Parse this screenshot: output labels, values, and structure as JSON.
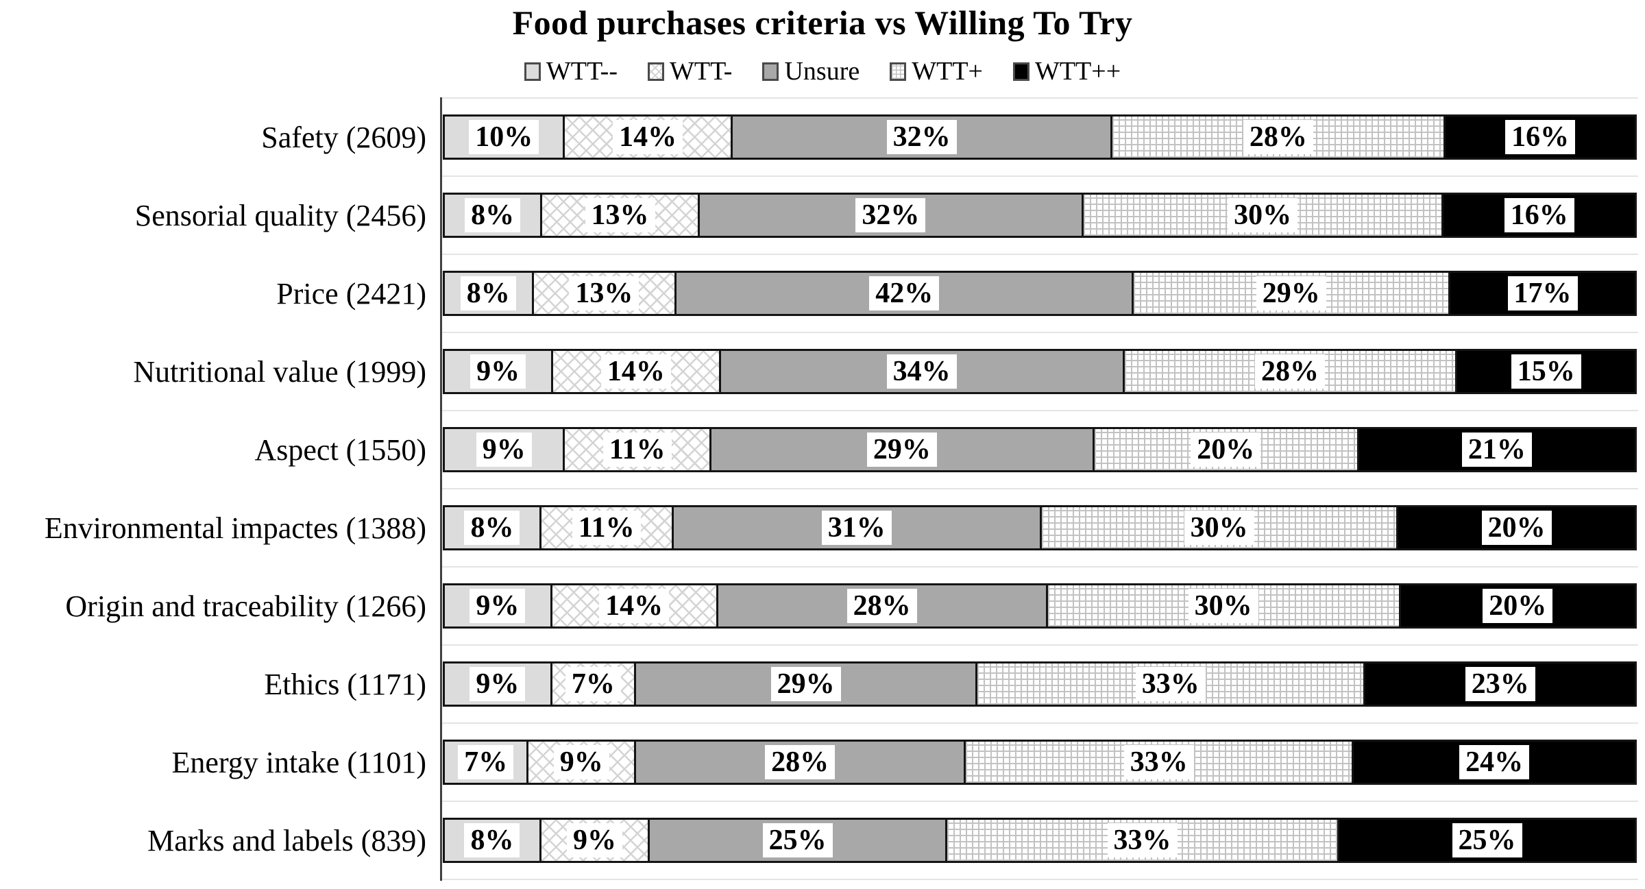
{
  "title": "Food purchases criteria vs Willing To Try",
  "colors": {
    "wtt_minus_minus_fill": "#dcdcdc",
    "wtt_minus_pattern": "diagonal-crosshatch-light-gray-on-white",
    "unsure_fill": "#a8a8a8",
    "wtt_plus_pattern": "fine-grid-light-gray-on-white",
    "wtt_plus_plus_fill": "#000000",
    "bar_border": "#141414",
    "gridline": "#e4e4e4",
    "value_label_background": "#ffffff"
  },
  "chart_data": {
    "type": "bar",
    "orientation": "horizontal",
    "stacked": true,
    "normalized_full_width": true,
    "title": "Food purchases criteria vs Willing To Try",
    "legend_position": "top",
    "grid": "horizontal-row-separators",
    "value_suffix": "%",
    "categories": [
      "Safety (2609)",
      "Sensorial quality (2456)",
      "Price (2421)",
      "Nutritional value (1999)",
      "Aspect (1550)",
      "Environmental impactes (1388)",
      "Origin and traceability (1266)",
      "Ethics (1171)",
      "Energy intake (1101)",
      "Marks and labels (839)"
    ],
    "series": [
      {
        "name": "WTT--",
        "values": [
          10,
          8,
          8,
          9,
          9,
          8,
          9,
          9,
          7,
          8
        ]
      },
      {
        "name": "WTT-",
        "values": [
          14,
          13,
          13,
          14,
          11,
          11,
          14,
          7,
          9,
          9
        ]
      },
      {
        "name": "Unsure",
        "values": [
          32,
          32,
          42,
          34,
          29,
          31,
          28,
          29,
          28,
          25
        ]
      },
      {
        "name": "WTT+",
        "values": [
          28,
          30,
          29,
          28,
          20,
          30,
          30,
          33,
          33,
          33
        ]
      },
      {
        "name": "WTT++",
        "values": [
          16,
          16,
          17,
          15,
          21,
          20,
          20,
          23,
          24,
          25
        ]
      }
    ]
  }
}
